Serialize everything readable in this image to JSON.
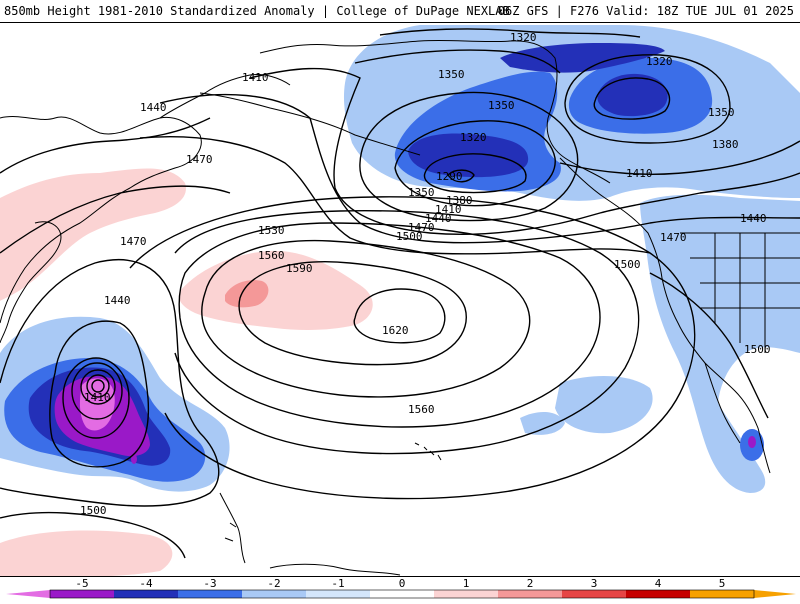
{
  "header": {
    "left_title": "850mb Height 1981-2010 Standardized Anomaly | College of DuPage NEXLAB",
    "right_title": "06Z GFS | F276 Valid: 18Z TUE JUL 01 2025"
  },
  "colors": {
    "neg5": "#e36ce3",
    "neg4": "#9a19c8",
    "neg3": "#2330b8",
    "neg2": "#3b6ee8",
    "neg1": "#a9c9f5",
    "neg05": "#d4e6fb",
    "pos1": "#fbd3d3",
    "pos2": "#f49898",
    "pos3": "#e64545",
    "pos4": "#c60000",
    "pos5": "#f7a100",
    "contour": "#000000",
    "coast": "#000000"
  },
  "contour_labels": [
    {
      "text": "1320",
      "id": "c1320a"
    },
    {
      "text": "1320",
      "id": "c1320b"
    },
    {
      "text": "1320",
      "id": "c1320c"
    },
    {
      "text": "1350",
      "id": "c1350a"
    },
    {
      "text": "1350",
      "id": "c1350b"
    },
    {
      "text": "1350",
      "id": "c1350c"
    },
    {
      "text": "1350",
      "id": "c1350d"
    },
    {
      "text": "1380",
      "id": "c1380a"
    },
    {
      "text": "1380",
      "id": "c1380b"
    },
    {
      "text": "1410",
      "id": "c1410a"
    },
    {
      "text": "1410",
      "id": "c1410b"
    },
    {
      "text": "1410",
      "id": "c1410c"
    },
    {
      "text": "1410",
      "id": "c1410d"
    },
    {
      "text": "1440",
      "id": "c1440a"
    },
    {
      "text": "1440",
      "id": "c1440b"
    },
    {
      "text": "1440",
      "id": "c1440c"
    },
    {
      "text": "1440",
      "id": "c1440d"
    },
    {
      "text": "1470",
      "id": "c1470a"
    },
    {
      "text": "1470",
      "id": "c1470b"
    },
    {
      "text": "1470",
      "id": "c1470c"
    },
    {
      "text": "1470",
      "id": "c1470d"
    },
    {
      "text": "1500",
      "id": "c1500a"
    },
    {
      "text": "1500",
      "id": "c1500b"
    },
    {
      "text": "1500",
      "id": "c1500c"
    },
    {
      "text": "1500",
      "id": "c1500d"
    },
    {
      "text": "1530",
      "id": "c1530"
    },
    {
      "text": "1560",
      "id": "c1560a"
    },
    {
      "text": "1560",
      "id": "c1560b"
    },
    {
      "text": "1590",
      "id": "c1590"
    },
    {
      "text": "1620",
      "id": "c1620"
    },
    {
      "text": "1290",
      "id": "c1290"
    }
  ],
  "colorbar": {
    "ticks": [
      "-5",
      "-4",
      "-3",
      "-2",
      "-1",
      "0",
      "1",
      "2",
      "3",
      "4",
      "5"
    ]
  }
}
